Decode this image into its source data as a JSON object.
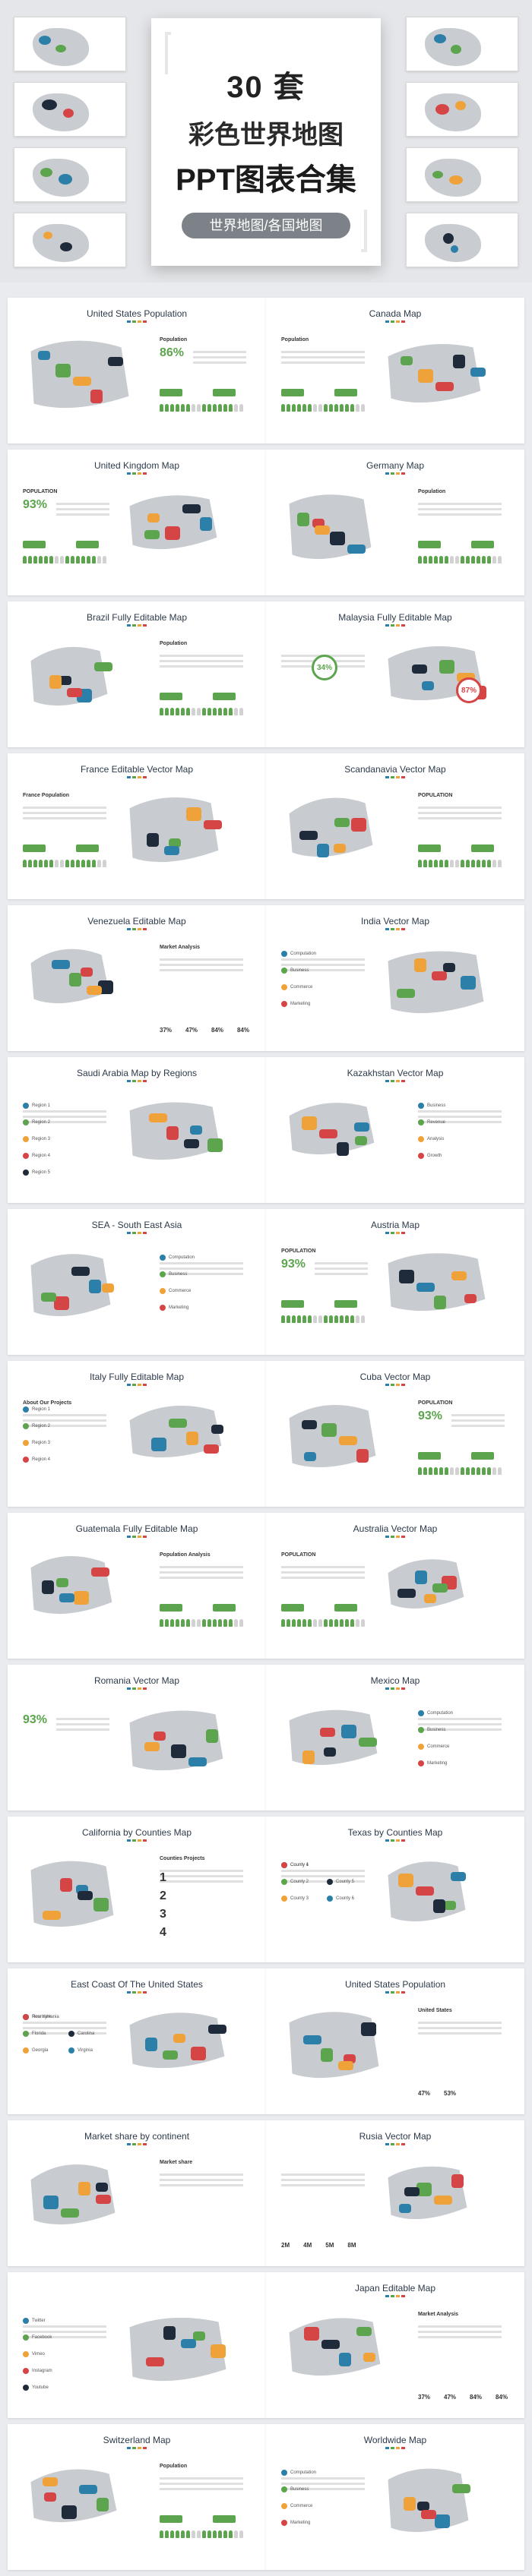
{
  "hero": {
    "count": "30 套",
    "line1": "彩色世界地图",
    "line2": "PPT图表合集",
    "pill": "世界地图/各国地图"
  },
  "colors": {
    "green": "#5ca44d",
    "blue": "#2b7fa8",
    "navy": "#1f2a3a",
    "orange": "#f0a23a",
    "red": "#d64545",
    "grey": "#c8ccd0"
  },
  "slides": [
    {
      "title": "United States Population",
      "pct": "86%",
      "label": "Population"
    },
    {
      "title": "Canada Map",
      "label": "Population"
    },
    {
      "title": "United Kingdom Map",
      "label": "POPULATION",
      "pct": "93%"
    },
    {
      "title": "Germany Map",
      "label": "Population"
    },
    {
      "title": "Brazil Fully Editable Map",
      "label": "Population"
    },
    {
      "title": "Malaysia Fully Editable Map",
      "c1": "34%",
      "c2": "87%"
    },
    {
      "title": "France Editable Vector Map",
      "label": "France Population"
    },
    {
      "title": "Scandanavia Vector Map",
      "label": "POPULATION"
    },
    {
      "title": "Venezuela Editable Map",
      "label": "Market Analysis",
      "stats": [
        "37%",
        "47%",
        "84%",
        "84%"
      ]
    },
    {
      "title": "India Vector Map",
      "items": [
        "Computation",
        "Business",
        "Commerce",
        "Marketing"
      ]
    },
    {
      "title": "Saudi Arabia Map by Regions",
      "items": [
        "Region 1",
        "Region 2",
        "Region 3",
        "Region 4",
        "Region 5"
      ]
    },
    {
      "title": "Kazakhstan Vector Map",
      "items": [
        "Business",
        "Revenue",
        "Analysis",
        "Growth"
      ]
    },
    {
      "title": "SEA - South East Asia",
      "items": [
        "Computation",
        "Business",
        "Commerce",
        "Marketing"
      ]
    },
    {
      "title": "Austria Map",
      "label": "POPULATION",
      "pct": "93%"
    },
    {
      "title": "Italy Fully Editable Map",
      "label": "About Our Projects",
      "items": [
        "Region 1",
        "Region 2",
        "Region 3",
        "Region 4"
      ]
    },
    {
      "title": "Cuba Vector Map",
      "label": "POPULATION",
      "pct": "93%"
    },
    {
      "title": "Guatemala Fully Editable Map",
      "label": "Population Analysis"
    },
    {
      "title": "Australia Vector Map",
      "label": "POPULATION"
    },
    {
      "title": "Romania Vector Map",
      "pct": "93%"
    },
    {
      "title": "Mexico Map",
      "items": [
        "Computation",
        "Business",
        "Commerce",
        "Marketing"
      ]
    },
    {
      "title": "California by Counties Map",
      "label": "Counties Projects",
      "nums": [
        "1",
        "2",
        "3",
        "4"
      ]
    },
    {
      "title": "Texas by Counties Map",
      "items": [
        "County 1",
        "County 2",
        "County 3",
        "County 4",
        "County 5",
        "County 6"
      ]
    },
    {
      "title": "East Coast Of The United States",
      "items": [
        "New York",
        "Florida",
        "Georgia",
        "Pennsylvania",
        "Carolina",
        "Virginia"
      ]
    },
    {
      "title": "United States Population",
      "label": "United States",
      "stats": [
        "47%",
        "53%"
      ]
    },
    {
      "title": "Market share by continent",
      "label": "Market share"
    },
    {
      "title": "Rusia Vector Map",
      "stats": [
        "2M",
        "4M",
        "5M",
        "8M"
      ]
    },
    {
      "title": "",
      "items": [
        "Twitter",
        "Facebook",
        "Vimeo",
        "Instagram",
        "Youtube"
      ]
    },
    {
      "title": "Japan Editable Map",
      "label": "Market Analysis",
      "stats": [
        "37%",
        "47%",
        "84%",
        "84%"
      ]
    },
    {
      "title": "Switzerland Map",
      "label": "Population"
    },
    {
      "title": "Worldwide Map",
      "items": [
        "Computation",
        "Business",
        "Commerce",
        "Marketing"
      ]
    }
  ]
}
